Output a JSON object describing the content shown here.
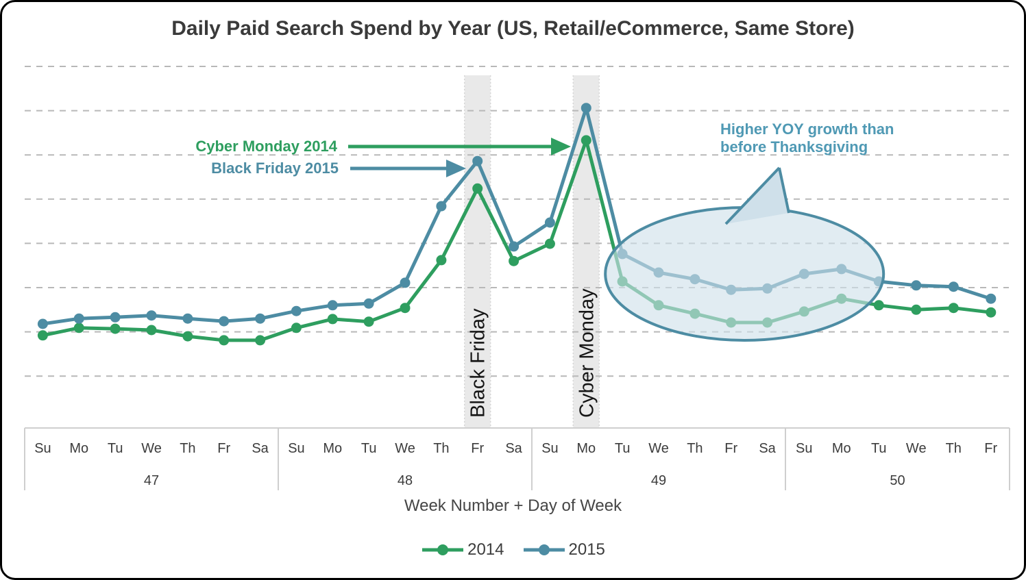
{
  "title": "Daily Paid Search Spend by Year (US, Retail/eCommerce, Same Store)",
  "annotations": {
    "cyber_monday_2014": "Cyber Monday 2014",
    "black_friday_2015": "Black Friday 2015",
    "callout_line1": "Higher YOY growth than",
    "callout_line2": "before Thanksgiving"
  },
  "x_axis": {
    "title": "Week Number + Day of Week",
    "weeks": [
      {
        "number": "47",
        "days": [
          "Su",
          "Mo",
          "Tu",
          "We",
          "Th",
          "Fr",
          "Sa"
        ]
      },
      {
        "number": "48",
        "days": [
          "Su",
          "Mo",
          "Tu",
          "We",
          "Th",
          "Fr",
          "Sa"
        ]
      },
      {
        "number": "49",
        "days": [
          "Su",
          "Mo",
          "Tu",
          "We",
          "Th",
          "Fr",
          "Sa"
        ]
      },
      {
        "number": "50",
        "days": [
          "Su",
          "Mo",
          "Tu",
          "We",
          "Th",
          "Fr"
        ]
      }
    ]
  },
  "legend": [
    {
      "label": "2014",
      "color": "#2e9e5f"
    },
    {
      "label": "2015",
      "color": "#4d8ca3"
    }
  ],
  "colors": {
    "series_2014": "#2e9e5f",
    "series_2015": "#4d8ca3",
    "gridline": "#b8b8b8",
    "highlight_band": "#e9e9e9",
    "band_edge": "#d6d6d6",
    "band_label_text": "#151515",
    "callout_text": "#4f99b4",
    "ellipse_fill": "#cfe0ea",
    "ellipse_stroke": "#4d8ca3",
    "axis_text": "#3c3c3c",
    "title_text": "#3a3a3a"
  },
  "chart_data": {
    "type": "line",
    "title": "Daily Paid Search Spend by Year (US, Retail/eCommerce, Same Store)",
    "xlabel": "Week Number + Day of Week",
    "ylabel": "",
    "y_axis_labels_shown": false,
    "y_units": "indexed daily paid search spend (no axis labels in chart)",
    "gridlines": {
      "horizontal_dashed": 8,
      "value_step": 10,
      "ylim": [
        10,
        80
      ]
    },
    "x_categories": [
      "47-Su",
      "47-Mo",
      "47-Tu",
      "47-We",
      "47-Th",
      "47-Fr",
      "47-Sa",
      "48-Su",
      "48-Mo",
      "48-Tu",
      "48-We",
      "48-Th",
      "48-Fr",
      "48-Sa",
      "49-Su",
      "49-Mo",
      "49-Tu",
      "49-We",
      "49-Th",
      "49-Fr",
      "49-Sa",
      "50-Su",
      "50-Mo",
      "50-Tu",
      "50-We",
      "50-Th",
      "50-Fr"
    ],
    "series": [
      {
        "name": "2014",
        "color": "#2e9e5f",
        "values": [
          19.2,
          20.9,
          20.7,
          20.4,
          19.0,
          18.1,
          18.1,
          20.9,
          22.9,
          22.3,
          25.4,
          36.2,
          52.4,
          36.0,
          39.9,
          63.3,
          31.4,
          26.0,
          24.1,
          22.1,
          22.1,
          24.6,
          27.5,
          26.0,
          25.0,
          25.4,
          24.4
        ]
      },
      {
        "name": "2015",
        "color": "#4d8ca3",
        "values": [
          21.8,
          23.0,
          23.3,
          23.7,
          23.0,
          22.4,
          23.0,
          24.7,
          26.0,
          26.4,
          31.1,
          48.4,
          58.6,
          39.3,
          44.7,
          70.6,
          37.6,
          33.4,
          31.9,
          29.5,
          29.8,
          33.1,
          34.2,
          31.4,
          30.5,
          30.2,
          27.5
        ]
      }
    ],
    "highlights": [
      {
        "index": 12,
        "label": "Black Friday"
      },
      {
        "index": 15,
        "label": "Cyber Monday"
      }
    ],
    "peak_callouts": [
      {
        "label": "Cyber Monday 2014",
        "series": "2014",
        "index": 15
      },
      {
        "label": "Black Friday 2015",
        "series": "2015",
        "index": 12
      }
    ],
    "ellipse_annotation": {
      "text": "Higher YOY growth than before Thanksgiving",
      "from_index": 16,
      "to_index": 23
    },
    "legend_position": "bottom"
  }
}
